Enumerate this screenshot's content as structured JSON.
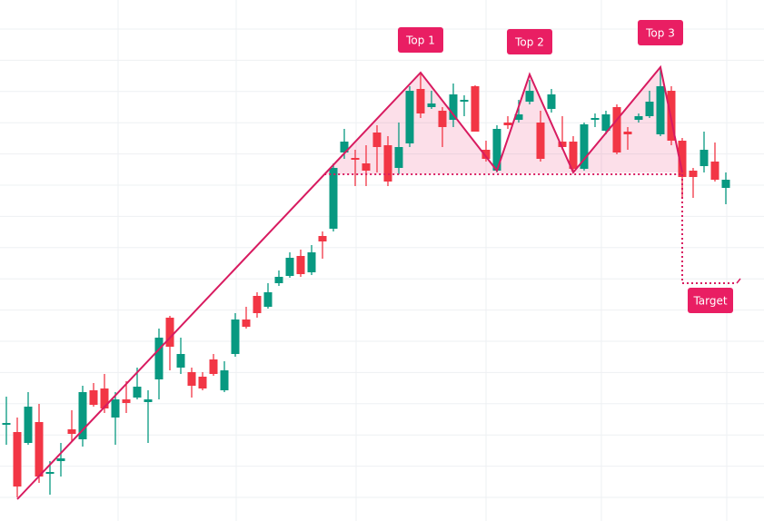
{
  "chart_data": {
    "type": "candlestick",
    "ylim": [
      0,
      574
    ],
    "grid": true,
    "up_color": "#089981",
    "down_color": "#f23645",
    "pattern_color": "#d81b60",
    "open": [
      106,
      98,
      86,
      109,
      52,
      66,
      101,
      90,
      144,
      146,
      114,
      134,
      136,
      131,
      156,
      224,
      169,
      164,
      159,
      178,
      144,
      184,
      222,
      248,
      236,
      262,
      270,
      292,
      274,
      314,
      322,
      406,
      400,
      394,
      428,
      414,
      389,
      416,
      476,
      456,
      452,
      442,
      462,
      479,
      409,
      386,
      439,
      442,
      462,
      439,
      454,
      418,
      418,
      388,
      442,
      430,
      456,
      429,
      442,
      446,
      426,
      474,
      419,
      386,
      391,
      396,
      367
    ],
    "high": [
      137,
      114,
      142,
      129,
      66,
      86,
      122,
      149,
      152,
      162,
      142,
      154,
      169,
      144,
      212,
      226,
      202,
      169,
      164,
      184,
      176,
      229,
      236,
      252,
      262,
      276,
      296,
      299,
      304,
      319,
      394,
      432,
      409,
      414,
      436,
      424,
      439,
      479,
      494,
      474,
      456,
      482,
      469,
      480,
      419,
      436,
      446,
      464,
      486,
      452,
      476,
      446,
      424,
      439,
      449,
      452,
      459,
      434,
      449,
      474,
      499,
      479,
      422,
      389,
      429,
      417,
      384
    ],
    "low": [
      84,
      26,
      84,
      42,
      29,
      49,
      88,
      82,
      126,
      119,
      84,
      119,
      134,
      86,
      134,
      166,
      162,
      136,
      144,
      160,
      142,
      181,
      212,
      224,
      234,
      259,
      268,
      269,
      271,
      289,
      319,
      399,
      369,
      369,
      384,
      369,
      382,
      412,
      444,
      454,
      412,
      434,
      446,
      429,
      396,
      384,
      432,
      439,
      459,
      396,
      450,
      409,
      384,
      386,
      434,
      426,
      404,
      409,
      439,
      444,
      424,
      414,
      356,
      356,
      384,
      374,
      349
    ],
    "close": [
      108,
      38,
      126,
      49,
      54,
      69,
      96,
      142,
      128,
      124,
      134,
      130,
      148,
      134,
      202,
      192,
      184,
      149,
      146,
      162,
      166,
      222,
      214,
      229,
      252,
      269,
      290,
      272,
      296,
      308,
      389,
      418,
      398,
      386,
      412,
      374,
      412,
      474,
      449,
      460,
      434,
      470,
      464,
      429,
      399,
      432,
      436,
      448,
      474,
      399,
      470,
      412,
      388,
      437,
      444,
      448,
      406,
      426,
      446,
      462,
      479,
      419,
      379,
      379,
      409,
      376,
      376
    ],
    "pattern": {
      "x": [
        1,
        38,
        45,
        48,
        52,
        60,
        62
      ],
      "values": [
        24,
        494,
        386,
        492,
        384,
        500,
        384
      ]
    },
    "neckline": 382,
    "target": 262,
    "annotations": [
      "Top 1",
      "Top 2",
      "Top 3",
      "Target"
    ]
  }
}
